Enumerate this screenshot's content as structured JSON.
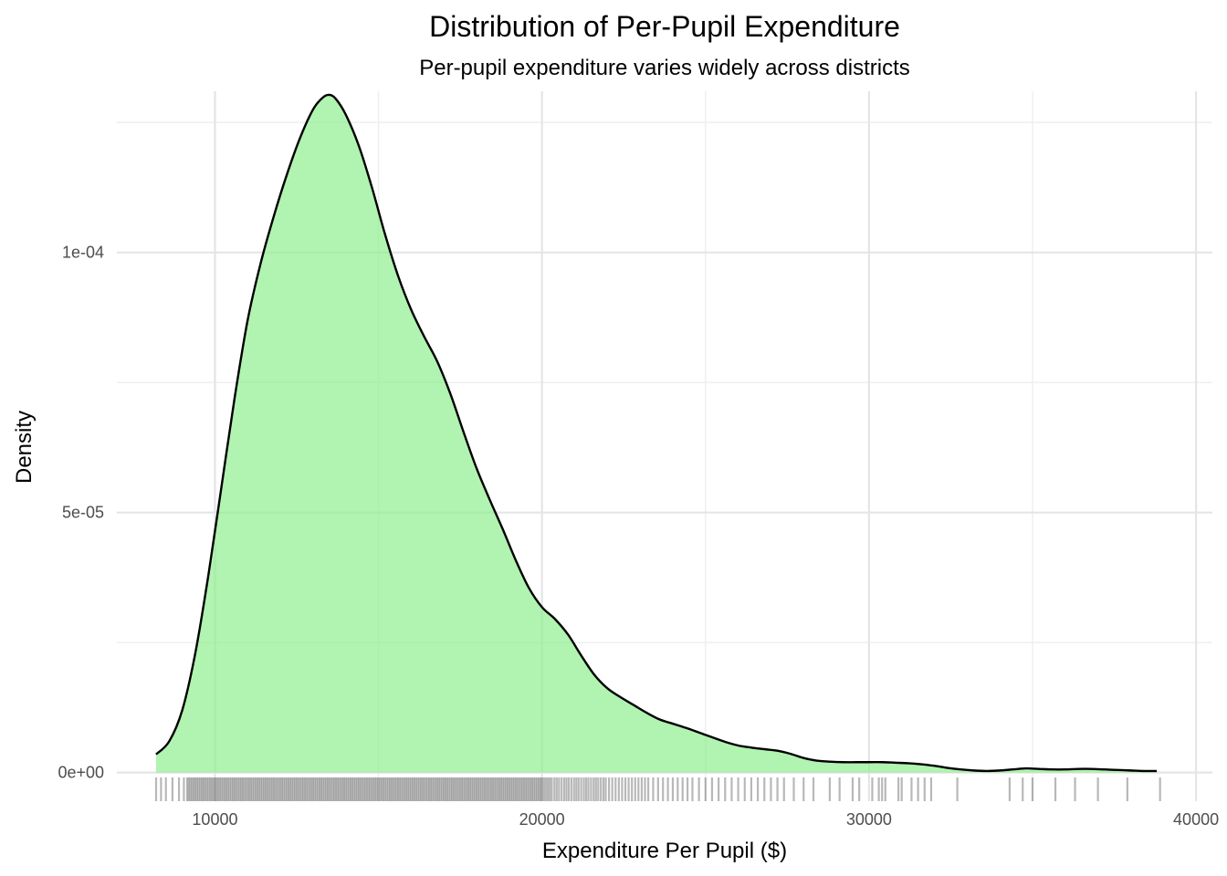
{
  "chart_data": {
    "type": "area",
    "title": "Distribution of Per-Pupil Expenditure",
    "subtitle": "Per-pupil expenditure varies widely across districts",
    "xlabel": "Expenditure Per Pupil ($)",
    "ylabel": "Density",
    "xlim": [
      7000,
      40500
    ],
    "ylim": [
      -5.5e-06,
      0.000131
    ],
    "x_ticks": [
      10000,
      20000,
      30000,
      40000
    ],
    "x_tick_labels": [
      "10000",
      "20000",
      "30000",
      "40000"
    ],
    "y_ticks": [
      0,
      5e-05,
      0.0001
    ],
    "y_tick_labels": [
      "0e+00",
      "5e-05",
      "1e-04"
    ],
    "grid": true,
    "legend": "none",
    "colors": {
      "fill": "#90EE90",
      "fill_opacity": 0.7,
      "line": "#000000",
      "rug": "#000000",
      "grid": "#e5e5e5"
    },
    "density": {
      "x": [
        8200,
        8600,
        9000,
        9400,
        9800,
        10200,
        10600,
        11000,
        11400,
        11800,
        12200,
        12600,
        13000,
        13300,
        13500,
        13700,
        14000,
        14400,
        14800,
        15200,
        15600,
        16000,
        16400,
        16800,
        17200,
        17600,
        18000,
        18400,
        18800,
        19200,
        19600,
        20000,
        20400,
        20800,
        21200,
        21600,
        22000,
        22400,
        22800,
        23200,
        23600,
        24000,
        24400,
        24800,
        25200,
        25600,
        26000,
        26400,
        26800,
        27200,
        27600,
        28000,
        28400,
        28800,
        29200,
        29600,
        30000,
        30400,
        30800,
        31200,
        31600,
        32000,
        32400,
        32800,
        33200,
        33600,
        34000,
        34400,
        34800,
        35200,
        35600,
        36000,
        36400,
        36800,
        37200,
        37600,
        38000,
        38400,
        38800
      ],
      "y": [
        3.5e-06,
        6e-06,
        1.2e-05,
        2.3e-05,
        3.8e-05,
        5.5e-05,
        7.2e-05,
        8.7e-05,
        9.8e-05,
        0.000107,
        0.000115,
        0.000122,
        0.0001275,
        0.0001298,
        0.0001303,
        0.0001295,
        0.0001265,
        0.0001205,
        0.0001125,
        0.0001035,
        9.55e-05,
        8.9e-05,
        8.38e-05,
        7.9e-05,
        7.28e-05,
        6.55e-05,
        5.85e-05,
        5.25e-05,
        4.68e-05,
        4.08e-05,
        3.55e-05,
        3.18e-05,
        2.95e-05,
        2.65e-05,
        2.25e-05,
        1.88e-05,
        1.62e-05,
        1.45e-05,
        1.3e-05,
        1.15e-05,
        1.02e-05,
        9.4e-06,
        8.6e-06,
        7.7e-06,
        6.8e-06,
        5.9e-06,
        5.2e-06,
        4.8e-06,
        4.5e-06,
        4.2e-06,
        3.6e-06,
        2.8e-06,
        2.3e-06,
        2.1e-06,
        2e-06,
        2e-06,
        2e-06,
        2e-06,
        1.9e-06,
        1.8e-06,
        1.6e-06,
        1.3e-06,
        9e-07,
        6e-07,
        4e-07,
        3e-07,
        4e-07,
        6e-07,
        8e-07,
        7e-07,
        6e-07,
        6e-07,
        7e-07,
        7e-07,
        6e-07,
        5e-07,
        4e-07,
        3e-07,
        3e-07
      ]
    },
    "rug_values": [
      8200,
      8350,
      8500,
      8700,
      8900,
      9050,
      9150,
      9200,
      9250,
      9300,
      9350,
      9400,
      9450,
      9500,
      9550,
      9600,
      9650,
      9700,
      9750,
      9800,
      9850,
      9900,
      9950,
      10000,
      10050,
      10100,
      10150,
      10200,
      10250,
      10300,
      10350,
      10400,
      10450,
      10500,
      10550,
      10600,
      10650,
      10700,
      10750,
      10800,
      10850,
      10900,
      10950,
      11000,
      11050,
      11100,
      11150,
      11200,
      11250,
      11300,
      11350,
      11400,
      11450,
      11500,
      11550,
      11600,
      11650,
      11700,
      11750,
      11800,
      11850,
      11900,
      11950,
      12000,
      12050,
      12100,
      12150,
      12200,
      12250,
      12300,
      12350,
      12400,
      12450,
      12500,
      12550,
      12600,
      12650,
      12700,
      12750,
      12800,
      12850,
      12900,
      12950,
      13000,
      13050,
      13100,
      13150,
      13200,
      13250,
      13300,
      13350,
      13400,
      13450,
      13500,
      13550,
      13600,
      13650,
      13700,
      13750,
      13800,
      13850,
      13900,
      13950,
      14000,
      14050,
      14100,
      14150,
      14200,
      14250,
      14300,
      14350,
      14400,
      14450,
      14500,
      14550,
      14600,
      14650,
      14700,
      14750,
      14800,
      14850,
      14900,
      14950,
      15000,
      15050,
      15100,
      15150,
      15200,
      15250,
      15300,
      15350,
      15400,
      15450,
      15500,
      15550,
      15600,
      15650,
      15700,
      15750,
      15800,
      15850,
      15900,
      15950,
      16000,
      16050,
      16100,
      16150,
      16200,
      16250,
      16300,
      16350,
      16400,
      16450,
      16500,
      16550,
      16600,
      16650,
      16700,
      16750,
      16800,
      16850,
      16900,
      16950,
      17000,
      17050,
      17100,
      17150,
      17200,
      17250,
      17300,
      17350,
      17400,
      17450,
      17500,
      17550,
      17600,
      17650,
      17700,
      17750,
      17800,
      17850,
      17900,
      17950,
      18000,
      18050,
      18100,
      18150,
      18200,
      18250,
      18300,
      18350,
      18400,
      18450,
      18500,
      18550,
      18600,
      18650,
      18700,
      18750,
      18800,
      18850,
      18900,
      18950,
      19000,
      19050,
      19100,
      19150,
      19200,
      19250,
      19300,
      19350,
      19400,
      19450,
      19500,
      19550,
      19600,
      19650,
      19700,
      19750,
      19800,
      19850,
      19900,
      19950,
      20000,
      20060,
      20120,
      20180,
      20240,
      20300,
      20380,
      20450,
      20520,
      20600,
      20680,
      20750,
      20820,
      20900,
      20980,
      21050,
      21120,
      21200,
      21280,
      21350,
      21420,
      21500,
      21580,
      21650,
      21720,
      21800,
      21880,
      21950,
      22050,
      22150,
      22250,
      22350,
      22450,
      22550,
      22650,
      22750,
      22850,
      22950,
      23050,
      23150,
      23250,
      23400,
      23550,
      23700,
      23850,
      24000,
      24150,
      24300,
      24450,
      24600,
      24800,
      25000,
      25200,
      25400,
      25600,
      25800,
      26000,
      26200,
      26400,
      26600,
      26800,
      27000,
      27200,
      27400,
      27700,
      28000,
      28300,
      28800,
      29100,
      29500,
      29700,
      30100,
      30300,
      30400,
      30500,
      30900,
      31000,
      31300,
      31500,
      31700,
      31900,
      32700,
      34300,
      34700,
      35000,
      35700,
      36300,
      37000,
      37900,
      38900
    ]
  }
}
